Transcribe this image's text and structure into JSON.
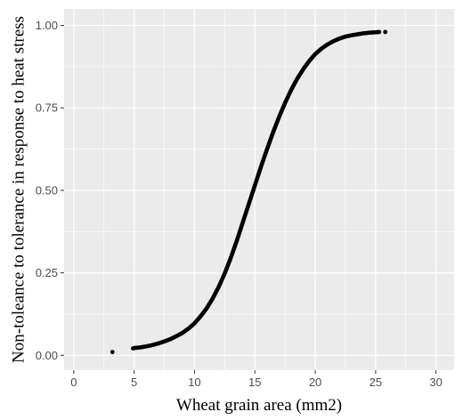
{
  "chart_data": {
    "type": "scatter",
    "title": "",
    "xlabel": "Wheat grain area (mm2)",
    "ylabel": "Non-toleance to tolerance in response to heat stress",
    "xlim": [
      -0.8,
      31.5
    ],
    "ylim": [
      -0.045,
      1.05
    ],
    "x_ticks": [
      0,
      5,
      10,
      15,
      20,
      25,
      30
    ],
    "x_tick_labels": [
      "0",
      "5",
      "10",
      "15",
      "20",
      "25",
      "30"
    ],
    "y_ticks": [
      0,
      0.25,
      0.5,
      0.75,
      1
    ],
    "y_tick_labels": [
      "0.00",
      "0.25",
      "0.50",
      "0.75",
      "1.00"
    ],
    "grid": true,
    "background_color": "#ebebeb",
    "grid_color": "#ffffff",
    "point_color": "#000000",
    "series": [
      {
        "points": [
          [
            3.2,
            0.01
          ],
          [
            4.9,
            0.021
          ],
          [
            5.0,
            0.022
          ],
          [
            5.5,
            0.024
          ],
          [
            6.0,
            0.027
          ],
          [
            6.5,
            0.031
          ],
          [
            7.0,
            0.036
          ],
          [
            7.5,
            0.042
          ],
          [
            8.0,
            0.049
          ],
          [
            8.5,
            0.058
          ],
          [
            9.0,
            0.068
          ],
          [
            9.5,
            0.081
          ],
          [
            10.0,
            0.097
          ],
          [
            10.5,
            0.118
          ],
          [
            11.0,
            0.142
          ],
          [
            11.5,
            0.172
          ],
          [
            12.0,
            0.207
          ],
          [
            12.5,
            0.248
          ],
          [
            13.0,
            0.295
          ],
          [
            13.5,
            0.347
          ],
          [
            14.0,
            0.403
          ],
          [
            14.5,
            0.459
          ],
          [
            15.0,
            0.515
          ],
          [
            15.5,
            0.571
          ],
          [
            16.0,
            0.624
          ],
          [
            16.5,
            0.675
          ],
          [
            17.0,
            0.722
          ],
          [
            17.5,
            0.765
          ],
          [
            18.0,
            0.804
          ],
          [
            18.5,
            0.838
          ],
          [
            19.0,
            0.867
          ],
          [
            19.5,
            0.892
          ],
          [
            20.0,
            0.913
          ],
          [
            20.5,
            0.929
          ],
          [
            21.0,
            0.942
          ],
          [
            21.5,
            0.952
          ],
          [
            22.0,
            0.96
          ],
          [
            22.5,
            0.966
          ],
          [
            23.0,
            0.97
          ],
          [
            23.5,
            0.973
          ],
          [
            24.0,
            0.976
          ],
          [
            24.5,
            0.978
          ],
          [
            25.0,
            0.979
          ],
          [
            25.3,
            0.98
          ],
          [
            25.8,
            0.98
          ]
        ]
      }
    ]
  }
}
